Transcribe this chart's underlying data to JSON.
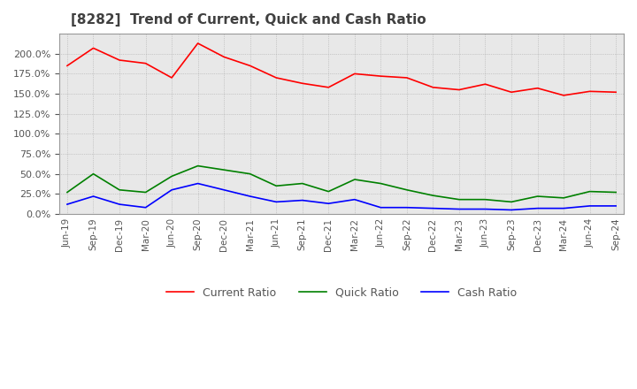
{
  "title": "[8282]  Trend of Current, Quick and Cash Ratio",
  "x_labels": [
    "Jun-19",
    "Sep-19",
    "Dec-19",
    "Mar-20",
    "Jun-20",
    "Sep-20",
    "Dec-20",
    "Mar-21",
    "Jun-21",
    "Sep-21",
    "Dec-21",
    "Mar-22",
    "Jun-22",
    "Sep-22",
    "Dec-22",
    "Mar-23",
    "Jun-23",
    "Sep-23",
    "Dec-23",
    "Mar-24",
    "Jun-24",
    "Sep-24"
  ],
  "current_ratio": [
    185,
    207,
    192,
    188,
    170,
    213,
    196,
    185,
    170,
    163,
    158,
    175,
    172,
    170,
    158,
    155,
    162,
    152,
    157,
    148,
    153,
    152
  ],
  "quick_ratio": [
    27,
    50,
    30,
    27,
    47,
    60,
    55,
    50,
    35,
    38,
    28,
    43,
    38,
    30,
    23,
    18,
    18,
    15,
    22,
    20,
    28,
    27
  ],
  "cash_ratio": [
    12,
    22,
    12,
    8,
    30,
    38,
    30,
    22,
    15,
    17,
    13,
    18,
    8,
    8,
    7,
    6,
    6,
    5,
    7,
    7,
    10,
    10
  ],
  "current_color": "#ff0000",
  "quick_color": "#008000",
  "cash_color": "#0000ff",
  "ylim": [
    0,
    225
  ],
  "yticks": [
    0,
    25,
    50,
    75,
    100,
    125,
    150,
    175,
    200
  ],
  "plot_bg_color": "#e8e8e8",
  "background_color": "#ffffff",
  "grid_color": "#aaaaaa",
  "title_color": "#404040"
}
